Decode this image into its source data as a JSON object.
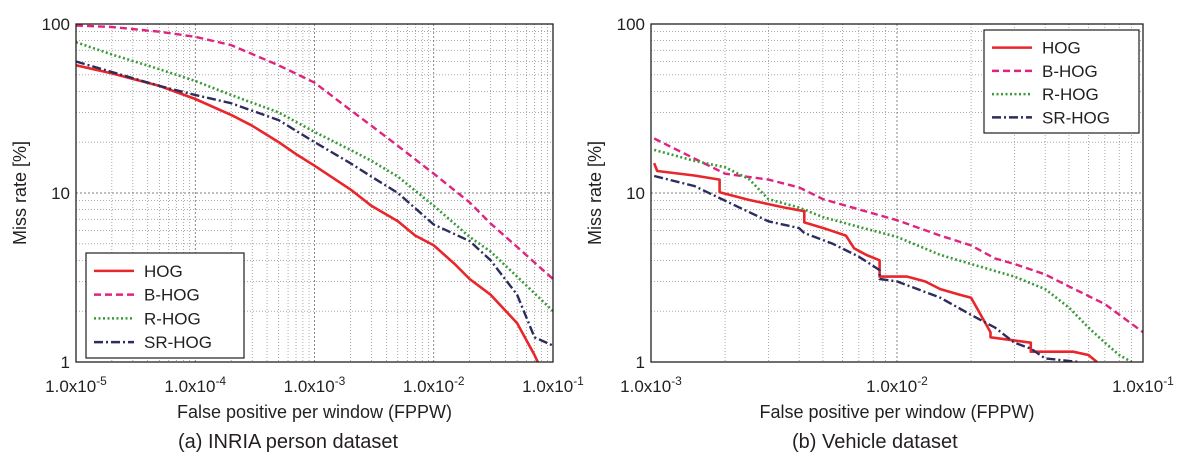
{
  "chart_data": [
    {
      "type": "line",
      "panel": "a",
      "caption": "(a) INRIA person dataset",
      "xlabel": "False positive per window (FPPW)",
      "ylabel": "Miss rate [%]",
      "x_scale": "log",
      "y_scale": "log",
      "xlim": [
        1e-05,
        0.1
      ],
      "ylim": [
        1,
        100
      ],
      "x_ticks": [
        {
          "value": 1e-05,
          "mantissa": "1.0x10",
          "exp": "-5"
        },
        {
          "value": 0.0001,
          "mantissa": "1.0x10",
          "exp": "-4"
        },
        {
          "value": 0.001,
          "mantissa": "1.0x10",
          "exp": "-3"
        },
        {
          "value": 0.01,
          "mantissa": "1.0x10",
          "exp": "-2"
        },
        {
          "value": 0.1,
          "mantissa": "1.0x10",
          "exp": "-1"
        }
      ],
      "y_ticks": [
        {
          "value": 1,
          "label": "1"
        },
        {
          "value": 10,
          "label": "10"
        },
        {
          "value": 100,
          "label": "100"
        }
      ],
      "grid": true,
      "legend_position": "bottom-left",
      "series": [
        {
          "name": "HOG",
          "color": "#e8262b",
          "dash": "",
          "width": 2.6,
          "x": [
            1e-05,
            2e-05,
            5e-05,
            0.0001,
            0.0002,
            0.0003,
            0.0005,
            0.0007,
            0.001,
            0.002,
            0.003,
            0.005,
            0.007,
            0.01,
            0.015,
            0.02,
            0.03,
            0.05,
            0.07,
            0.08
          ],
          "y": [
            57,
            51,
            43,
            36,
            29,
            25,
            20,
            17,
            14.5,
            10.5,
            8.4,
            6.8,
            5.6,
            4.9,
            3.8,
            3.1,
            2.5,
            1.7,
            1.1,
            0.9
          ]
        },
        {
          "name": "B-HOG",
          "color": "#e0237f",
          "dash": "7,4",
          "width": 2.4,
          "x": [
            1e-05,
            2e-05,
            5e-05,
            0.0001,
            0.0002,
            0.0005,
            0.001,
            0.002,
            0.003,
            0.005,
            0.01,
            0.02,
            0.03,
            0.05,
            0.1
          ],
          "y": [
            98,
            96,
            90,
            84,
            75,
            57,
            45,
            31,
            25,
            19,
            13,
            8.8,
            6.6,
            4.8,
            3.1
          ]
        },
        {
          "name": "R-HOG",
          "color": "#3a9a3a",
          "dash": "2,2.5",
          "width": 2.6,
          "x": [
            1e-05,
            2e-05,
            5e-05,
            0.0001,
            0.0002,
            0.0005,
            0.001,
            0.002,
            0.003,
            0.005,
            0.01,
            0.02,
            0.03,
            0.05,
            0.1
          ],
          "y": [
            78,
            66,
            54,
            46,
            38,
            30,
            23,
            18,
            15.5,
            12.5,
            8.4,
            5.5,
            4.5,
            3.2,
            2.0
          ]
        },
        {
          "name": "SR-HOG",
          "color": "#2b2d5c",
          "dash": "9,3,2,3",
          "width": 2.4,
          "x": [
            1e-05,
            2e-05,
            5e-05,
            0.0001,
            0.0002,
            0.0005,
            0.001,
            0.002,
            0.003,
            0.005,
            0.01,
            0.02,
            0.03,
            0.05,
            0.07,
            0.1
          ],
          "y": [
            60,
            52,
            43,
            38,
            34,
            27,
            20,
            15,
            12.5,
            10,
            6.5,
            5.2,
            4.0,
            2.5,
            1.4,
            1.25
          ]
        }
      ]
    },
    {
      "type": "line",
      "panel": "b",
      "caption": "(b) Vehicle dataset",
      "xlabel": "False positive per window (FPPW)",
      "ylabel": "Miss rate [%]",
      "x_scale": "log",
      "y_scale": "log",
      "xlim": [
        0.001,
        0.1
      ],
      "ylim": [
        1,
        100
      ],
      "x_ticks": [
        {
          "value": 0.001,
          "mantissa": "1.0x10",
          "exp": "-3"
        },
        {
          "value": 0.01,
          "mantissa": "1.0x10",
          "exp": "-2"
        },
        {
          "value": 0.1,
          "mantissa": "1.0x10",
          "exp": "-1"
        }
      ],
      "y_ticks": [
        {
          "value": 1,
          "label": "1"
        },
        {
          "value": 10,
          "label": "10"
        },
        {
          "value": 100,
          "label": "100"
        }
      ],
      "grid": true,
      "legend_position": "top-right",
      "series": [
        {
          "name": "HOG",
          "color": "#e8262b",
          "dash": "",
          "width": 2.6,
          "x": [
            0.00103,
            0.00106,
            0.0015,
            0.0019,
            0.0019,
            0.0025,
            0.003,
            0.0035,
            0.0042,
            0.0042,
            0.0052,
            0.0062,
            0.0067,
            0.0075,
            0.0085,
            0.0085,
            0.011,
            0.013,
            0.015,
            0.018,
            0.02,
            0.024,
            0.024,
            0.035,
            0.035,
            0.052,
            0.06,
            0.065
          ],
          "y": [
            15,
            13.5,
            12.7,
            12,
            10.1,
            9.1,
            8.6,
            8.2,
            7.8,
            6.7,
            6.1,
            5.6,
            4.7,
            4.3,
            4.0,
            3.2,
            3.2,
            3.0,
            2.7,
            2.5,
            2.4,
            1.5,
            1.4,
            1.3,
            1.15,
            1.15,
            1.1,
            1.0
          ]
        },
        {
          "name": "B-HOG",
          "color": "#e0237f",
          "dash": "7,4",
          "width": 2.4,
          "x": [
            0.00103,
            0.0015,
            0.002,
            0.003,
            0.004,
            0.005,
            0.007,
            0.01,
            0.015,
            0.02,
            0.025,
            0.03,
            0.04,
            0.05,
            0.07,
            0.1
          ],
          "y": [
            21,
            16,
            13,
            12,
            10.8,
            9.2,
            8.0,
            6.9,
            5.6,
            4.9,
            4.1,
            3.8,
            3.3,
            2.8,
            2.2,
            1.5
          ]
        },
        {
          "name": "R-HOG",
          "color": "#3a9a3a",
          "dash": "2,2.5",
          "width": 2.6,
          "x": [
            0.00103,
            0.0015,
            0.002,
            0.0025,
            0.003,
            0.004,
            0.005,
            0.007,
            0.01,
            0.015,
            0.02,
            0.03,
            0.04,
            0.05,
            0.06,
            0.07,
            0.08,
            0.09
          ],
          "y": [
            18,
            15.5,
            14.2,
            12.1,
            9.2,
            8.2,
            7.2,
            6.3,
            5.5,
            4.3,
            3.8,
            3.2,
            2.7,
            2.1,
            1.6,
            1.3,
            1.1,
            1.0
          ]
        },
        {
          "name": "SR-HOG",
          "color": "#2b2d5c",
          "dash": "9,3,2,3",
          "width": 2.4,
          "x": [
            0.00103,
            0.0015,
            0.002,
            0.003,
            0.004,
            0.0042,
            0.0055,
            0.007,
            0.0085,
            0.0085,
            0.01,
            0.015,
            0.02,
            0.025,
            0.03,
            0.035,
            0.04,
            0.055
          ],
          "y": [
            12.6,
            11.0,
            9.0,
            6.8,
            6.2,
            5.8,
            5.0,
            4.2,
            3.5,
            3.1,
            3.0,
            2.4,
            1.9,
            1.6,
            1.3,
            1.2,
            1.05,
            1.0
          ]
        }
      ]
    }
  ]
}
